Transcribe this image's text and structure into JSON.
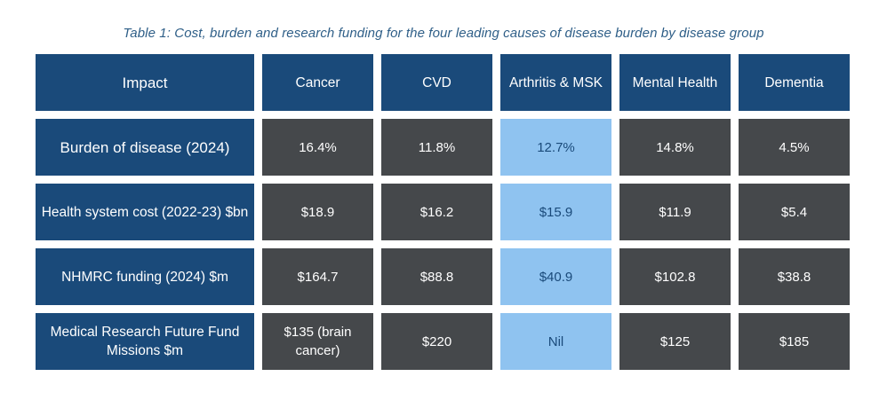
{
  "caption": "Table 1: Cost, burden and research funding for the four leading causes of disease burden by disease group",
  "table": {
    "headers": [
      "Impact",
      "Cancer",
      "CVD",
      "Arthritis & MSK",
      "Mental Health",
      "Dementia"
    ],
    "rows": [
      {
        "label": "Burden of disease (2024)",
        "values": [
          "16.4%",
          "11.8%",
          "12.7%",
          "14.8%",
          "4.5%"
        ]
      },
      {
        "label": "Health system cost (2022-23) $bn",
        "values": [
          "$18.9",
          "$16.2",
          "$15.9",
          "$11.9",
          "$5.4"
        ]
      },
      {
        "label": "NHMRC funding (2024) $m",
        "values": [
          "$164.7",
          "$88.8",
          "$40.9",
          "$102.8",
          "$38.8"
        ]
      },
      {
        "label": "Medical Research Future Fund Missions $m",
        "values": [
          "$135 (brain cancer)",
          "$220",
          "Nil",
          "$125",
          "$185"
        ]
      }
    ]
  },
  "colors": {
    "header_bg": "#1a4a7a",
    "value_bg": "#45484b",
    "highlight_bg": "#8fc3f0",
    "highlight_text": "#1a4a7a",
    "caption_text": "#2f5f88"
  }
}
